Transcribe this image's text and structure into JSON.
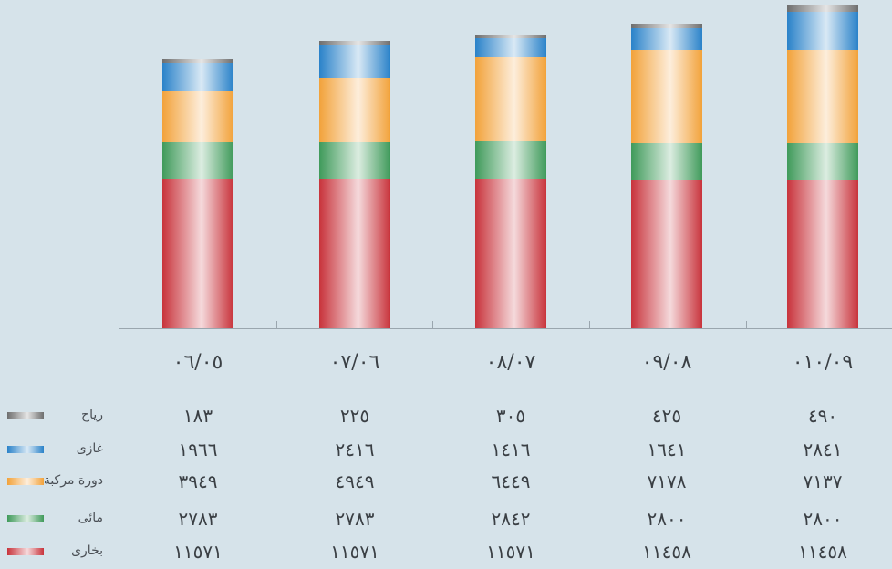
{
  "chart_data": {
    "type": "bar",
    "stacked": true,
    "categories": [
      "٠٦/٠٥",
      "٠٧/٠٦",
      "٠٨/٠٧",
      "٠٩/٠٨",
      "٠١٠/٠٩"
    ],
    "series": [
      {
        "name": "بخارى",
        "values": [
          11571,
          11571,
          11571,
          11458,
          11458
        ],
        "color": "#c8333b"
      },
      {
        "name": "مائى",
        "values": [
          2783,
          2783,
          2842,
          2800,
          2800
        ],
        "color": "#3f9a5a"
      },
      {
        "name": "دورة مركبة",
        "values": [
          3949,
          4949,
          6449,
          7178,
          7137
        ],
        "color": "#f2a23a"
      },
      {
        "name": "غازى",
        "values": [
          1966,
          2416,
          1416,
          1641,
          2841
        ],
        "color": "#2a82c9"
      },
      {
        "name": "رياح",
        "values": [
          183,
          225,
          305,
          425,
          490
        ],
        "color": "#6e6e6e"
      }
    ],
    "table_values": {
      "رياح": [
        "١٨٣",
        "٢٢٥",
        "٣٠٥",
        "٤٢٥",
        "٤٩٠"
      ],
      "غازى": [
        "١٩٦٦",
        "٢٤١٦",
        "١٤١٦",
        "١٦٤١",
        "٢٨٤١"
      ],
      "دورة مركبة": [
        "٣٩٤٩",
        "٤٩٤٩",
        "٦٤٤٩",
        "٧١٧٨",
        "٧١٣٧"
      ],
      "مائى": [
        "٢٧٨٣",
        "٢٧٨٣",
        "٢٨٤٢",
        "٢٨٠٠",
        "٢٨٠٠"
      ],
      "بخارى": [
        "١١٥٧١",
        "١١٥٧١",
        "١١٥٧١",
        "١١٤٥٨",
        "١١٤٥٨"
      ]
    },
    "legend_order": [
      "رياح",
      "غازى",
      "دورة مركبة",
      "مائى",
      "بخارى"
    ],
    "title": "",
    "xlabel": "",
    "ylabel": "",
    "grid": false,
    "legend_position": "bottom-left"
  }
}
